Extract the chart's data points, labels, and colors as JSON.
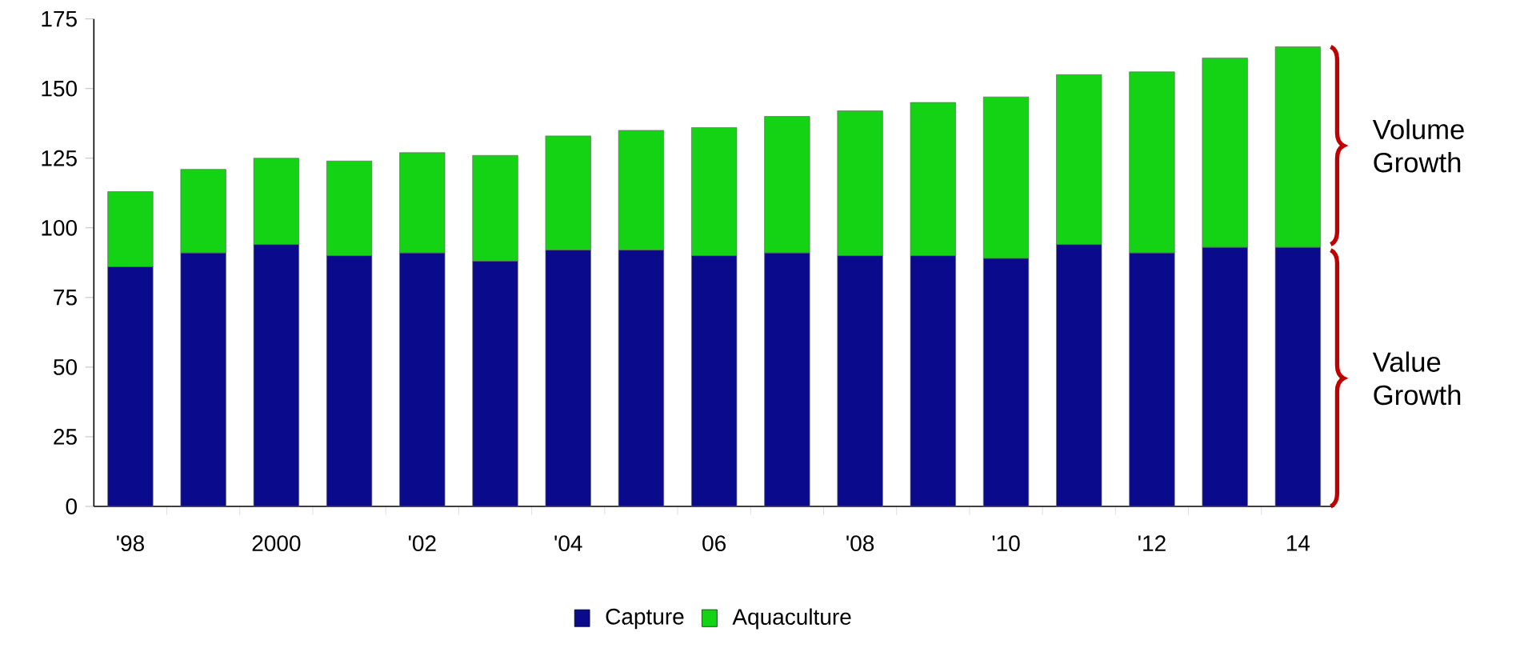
{
  "chart_data": {
    "type": "bar",
    "stacked": true,
    "categories": [
      "'98",
      null,
      "2000",
      null,
      "'02",
      null,
      "'04",
      null,
      "06",
      null,
      "'08",
      null,
      "'10",
      null,
      "'12",
      null,
      "14"
    ],
    "series": [
      {
        "name": "Capture",
        "color": "#0a0a8c",
        "values": [
          86,
          91,
          94,
          90,
          91,
          88,
          92,
          92,
          90,
          91,
          90,
          90,
          89,
          94,
          91,
          93,
          93
        ]
      },
      {
        "name": "Aquaculture",
        "color": "#14d214",
        "values": [
          27,
          30,
          31,
          34,
          36,
          38,
          41,
          43,
          46,
          49,
          52,
          55,
          58,
          61,
          65,
          68,
          72
        ]
      }
    ],
    "ylim": [
      0,
      175
    ],
    "yticks": [
      0,
      25,
      50,
      75,
      100,
      125,
      150,
      175
    ],
    "legend": "bottom",
    "annotations": [
      "Volume Growth",
      "Value Growth"
    ]
  }
}
